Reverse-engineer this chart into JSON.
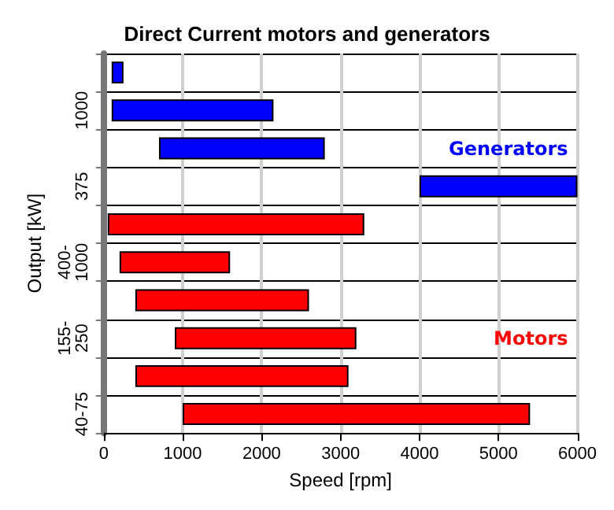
{
  "chart_data": {
    "type": "bar",
    "orientation": "horizontal",
    "title": "Direct Current motors and generators",
    "xlabel": "Speed [rpm]",
    "ylabel": "Output [kW]",
    "categories": [
      null,
      "1000",
      null,
      "375",
      null,
      "400-1000",
      null,
      "155-250",
      null,
      "40-75"
    ],
    "series": [
      {
        "name": "Generators",
        "color": "#0000ff",
        "base": [
          100,
          100,
          700,
          4000,
          null,
          null,
          null,
          null,
          null,
          null
        ],
        "values": [
          150,
          2050,
          2100,
          2000,
          null,
          null,
          null,
          null,
          null,
          null
        ]
      },
      {
        "name": "Motors",
        "color": "#ff0000",
        "base": [
          null,
          null,
          null,
          null,
          50,
          200,
          400,
          900,
          400,
          1000
        ],
        "values": [
          null,
          null,
          null,
          null,
          3250,
          1400,
          2200,
          2300,
          2700,
          4400
        ]
      }
    ],
    "xlim": [
      0,
      6000
    ],
    "xticks": [
      0,
      1000,
      2000,
      3000,
      4000,
      5000,
      6000
    ],
    "grid": true,
    "legend": false
  }
}
